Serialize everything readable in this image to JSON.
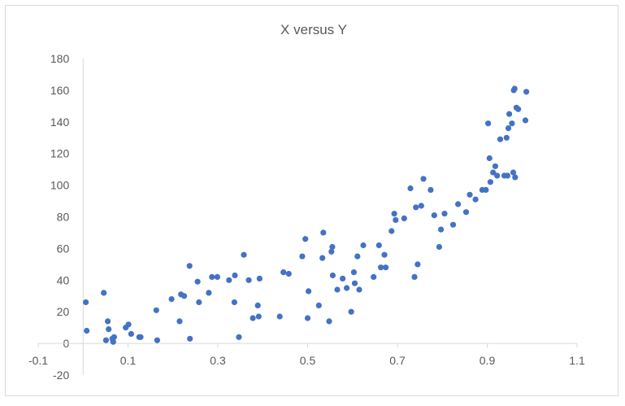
{
  "chart_data": {
    "type": "scatter",
    "title": "X versus Y",
    "xlabel": "",
    "ylabel": "",
    "xlim": [
      -0.1,
      1.1
    ],
    "ylim": [
      -20,
      180
    ],
    "x_ticks": [
      -0.1,
      0.1,
      0.3,
      0.5,
      0.7,
      0.9,
      1.1
    ],
    "x_tick_labels": [
      "-0.1",
      "0.1",
      "0.3",
      "0.5",
      "0.7",
      "0.9",
      "1.1"
    ],
    "y_ticks": [
      -20,
      0,
      20,
      40,
      60,
      80,
      100,
      120,
      140,
      160,
      180
    ],
    "y_tick_labels": [
      "-20",
      "0",
      "20",
      "40",
      "60",
      "80",
      "100",
      "120",
      "140",
      "160",
      "180"
    ],
    "grid": false,
    "legend": "none",
    "marker_color": "#4472c4",
    "axis_color": "#d9d9d9",
    "text_color": "#595959",
    "series": [
      {
        "x": [
          0.006,
          0.008,
          0.046,
          0.051,
          0.055,
          0.057,
          0.065,
          0.067,
          0.069,
          0.095,
          0.101,
          0.107,
          0.125,
          0.128,
          0.163,
          0.165,
          0.197,
          0.215,
          0.218,
          0.225,
          0.237,
          0.238,
          0.255,
          0.258,
          0.28,
          0.287,
          0.299,
          0.325,
          0.337,
          0.338,
          0.347,
          0.358,
          0.369,
          0.378,
          0.389,
          0.391,
          0.393,
          0.438,
          0.446,
          0.458,
          0.488,
          0.495,
          0.5,
          0.502,
          0.525,
          0.533,
          0.535,
          0.548,
          0.553,
          0.555,
          0.556,
          0.566,
          0.578,
          0.587,
          0.597,
          0.603,
          0.605,
          0.611,
          0.615,
          0.624,
          0.647,
          0.659,
          0.663,
          0.671,
          0.674,
          0.687,
          0.693,
          0.696,
          0.715,
          0.729,
          0.738,
          0.741,
          0.745,
          0.753,
          0.758,
          0.774,
          0.782,
          0.793,
          0.797,
          0.805,
          0.824,
          0.835,
          0.853,
          0.861,
          0.874,
          0.889,
          0.897,
          0.902,
          0.905,
          0.907,
          0.913,
          0.918,
          0.922,
          0.929,
          0.938,
          0.943,
          0.945,
          0.947,
          0.949,
          0.955,
          0.958,
          0.959,
          0.961,
          0.962,
          0.965,
          0.969,
          0.985,
          0.987
        ],
        "y": [
          26,
          8,
          32,
          2,
          14,
          9,
          3,
          1,
          4,
          10,
          12,
          6,
          4,
          4,
          21,
          2,
          28,
          14,
          31,
          30,
          49,
          3,
          39,
          26,
          32,
          42,
          42,
          40,
          26,
          43,
          4,
          56,
          40,
          16,
          24,
          17,
          41,
          17,
          45,
          44,
          55,
          66,
          16,
          33,
          24,
          54,
          70,
          14,
          58,
          61,
          43,
          34,
          41,
          35,
          20,
          45,
          38,
          55,
          34,
          62,
          42,
          62,
          48,
          56,
          48,
          71,
          82,
          78,
          79,
          98,
          42,
          86,
          50,
          87,
          104,
          97,
          81,
          61,
          72,
          82,
          75,
          88,
          83,
          94,
          91,
          97,
          97,
          139,
          117,
          102,
          108,
          112,
          106,
          129,
          106,
          130,
          106,
          136,
          145,
          139,
          108,
          160,
          161,
          105,
          149,
          148,
          141,
          159
        ]
      }
    ]
  }
}
